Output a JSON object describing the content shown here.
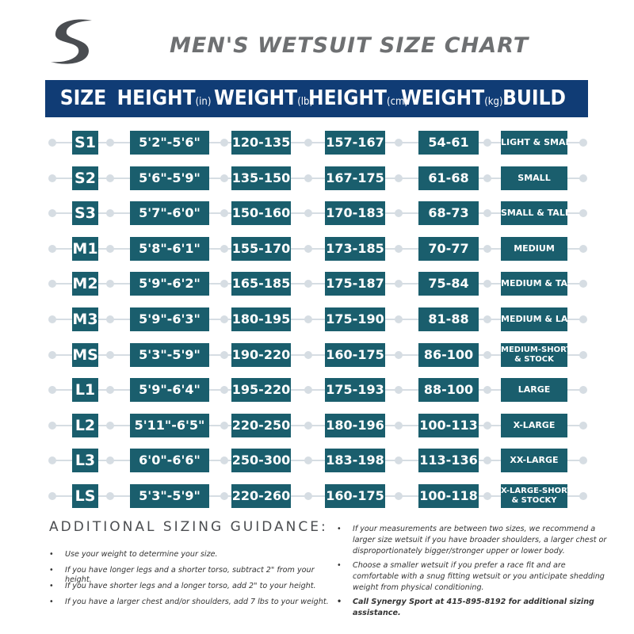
{
  "title": "MEN'S WETSUIT SIZE CHART",
  "logo_icon": "s-wave-logo-icon",
  "colors": {
    "header": "#103c75",
    "cell": "#1a5e6d",
    "connector": "#d6dde3",
    "title": "#6e7072"
  },
  "headers": [
    {
      "main": "SIZE",
      "unit": ""
    },
    {
      "main": "HEIGHT",
      "unit": "(in)"
    },
    {
      "main": "WEIGHT",
      "unit": "(lb)"
    },
    {
      "main": "HEIGHT",
      "unit": "(cm)"
    },
    {
      "main": "WEIGHT",
      "unit": "(kg)"
    },
    {
      "main": "BUILD",
      "unit": ""
    }
  ],
  "rows": [
    {
      "size": "S1",
      "height_in": "5'2\"-5'6\"",
      "weight_lb": "120-135",
      "height_cm": "157-167",
      "weight_kg": "54-61",
      "build": [
        "LIGHT & SMALL"
      ]
    },
    {
      "size": "S2",
      "height_in": "5'6\"-5'9\"",
      "weight_lb": "135-150",
      "height_cm": "167-175",
      "weight_kg": "61-68",
      "build": [
        "SMALL"
      ]
    },
    {
      "size": "S3",
      "height_in": "5'7\"-6'0\"",
      "weight_lb": "150-160",
      "height_cm": "170-183",
      "weight_kg": "68-73",
      "build": [
        "SMALL & TALL"
      ]
    },
    {
      "size": "M1",
      "height_in": "5'8\"-6'1\"",
      "weight_lb": "155-170",
      "height_cm": "173-185",
      "weight_kg": "70-77",
      "build": [
        "MEDIUM"
      ]
    },
    {
      "size": "M2",
      "height_in": "5'9\"-6'2\"",
      "weight_lb": "165-185",
      "height_cm": "175-187",
      "weight_kg": "75-84",
      "build": [
        "MEDIUM & TALL"
      ]
    },
    {
      "size": "M3",
      "height_in": "5'9\"-6'3\"",
      "weight_lb": "180-195",
      "height_cm": "175-190",
      "weight_kg": "81-88",
      "build": [
        "MEDIUM & LARGE"
      ]
    },
    {
      "size": "MS",
      "height_in": "5'3\"-5'9\"",
      "weight_lb": "190-220",
      "height_cm": "160-175",
      "weight_kg": "86-100",
      "build": [
        "MEDIUM-SHORT",
        "& STOCK"
      ]
    },
    {
      "size": "L1",
      "height_in": "5'9\"-6'4\"",
      "weight_lb": "195-220",
      "height_cm": "175-193",
      "weight_kg": "88-100",
      "build": [
        "LARGE"
      ]
    },
    {
      "size": "L2",
      "height_in": "5'11\"-6'5\"",
      "weight_lb": "220-250",
      "height_cm": "180-196",
      "weight_kg": "100-113",
      "build": [
        "X-LARGE"
      ]
    },
    {
      "size": "L3",
      "height_in": "6'0\"-6'6\"",
      "weight_lb": "250-300",
      "height_cm": "183-198",
      "weight_kg": "113-136",
      "build": [
        "XX-LARGE"
      ]
    },
    {
      "size": "LS",
      "height_in": "5'3\"-5'9\"",
      "weight_lb": "220-260",
      "height_cm": "160-175",
      "weight_kg": "100-118",
      "build": [
        "X-LARGE-SHORT",
        "& STOCKY"
      ]
    }
  ],
  "guidance": {
    "title": "ADDITIONAL SIZING GUIDANCE:",
    "left": [
      "Use your weight to determine your size.",
      "If you have longer legs and a shorter torso, subtract 2\" from your height.",
      "If you have shorter legs and a longer torso, add 2\" to your height.",
      "If you have a larger chest and/or shoulders, add 7 lbs to your weight."
    ],
    "right": [
      "If your measurements are between two sizes, we recommend a larger size wetsuit if you have broader shoulders, a larger chest or disproportionately bigger/stronger upper or lower body.",
      "Choose a smaller wetsuit if you prefer a race fit and are comfortable with a snug fitting wetsuit or you anticipate shedding weight from physical conditioning."
    ],
    "contact": "Call Synergy Sport at 415-895-8192 for additional sizing assistance."
  }
}
